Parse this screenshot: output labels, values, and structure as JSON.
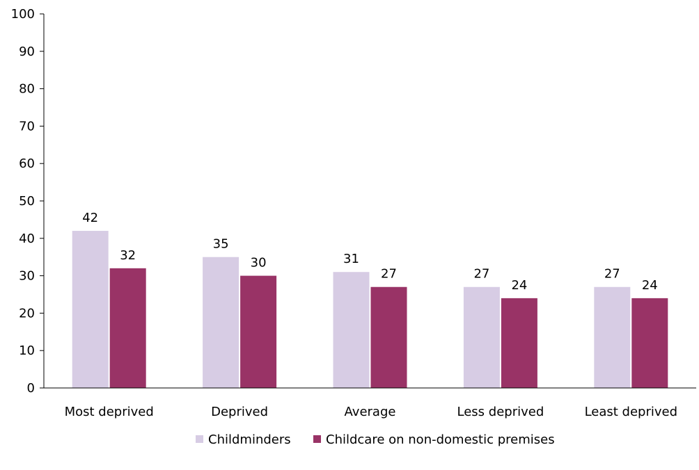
{
  "chart_data": {
    "type": "bar",
    "categories": [
      "Most deprived",
      "Deprived",
      "Average",
      "Less deprived",
      "Least deprived"
    ],
    "series": [
      {
        "name": "Childminders",
        "values": [
          42,
          35,
          31,
          27,
          27
        ],
        "color": "#d7cce4"
      },
      {
        "name": "Childcare on non-domestic premises",
        "values": [
          32,
          30,
          27,
          24,
          24
        ],
        "color": "#993366"
      }
    ],
    "ylim": [
      0,
      100
    ],
    "yticks": [
      0,
      10,
      20,
      30,
      40,
      50,
      60,
      70,
      80,
      90,
      100
    ],
    "title": "",
    "xlabel": "",
    "ylabel": "",
    "grid": false,
    "legend_position": "bottom-center",
    "data_labels": true
  }
}
